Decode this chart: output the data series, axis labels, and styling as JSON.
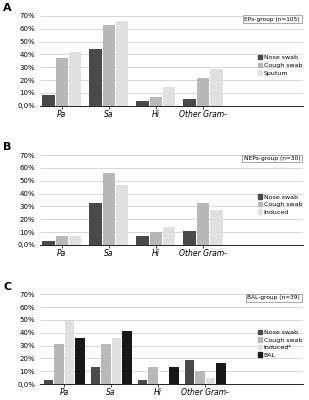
{
  "panels": [
    {
      "label": "A",
      "title": "EPs-group (n=105)",
      "legend_labels": [
        "Nose swab",
        "Cough swab",
        "Sputum"
      ],
      "categories": [
        "Pa",
        "Sa",
        "Hi",
        "Other Gram-"
      ],
      "values": [
        [
          8.0,
          37.0,
          42.0
        ],
        [
          44.0,
          63.0,
          66.0
        ],
        [
          4.0,
          7.0,
          15.0
        ],
        [
          5.0,
          22.0,
          29.0
        ]
      ],
      "n_bars": 3
    },
    {
      "label": "B",
      "title": "NEPs-group (n=30)",
      "legend_labels": [
        "Nose swab",
        "Cough swab",
        "Induced"
      ],
      "categories": [
        "Pa",
        "Sa",
        "Hi",
        "Other Gram-"
      ],
      "values": [
        [
          3.0,
          7.0,
          7.0
        ],
        [
          33.0,
          56.0,
          47.0
        ],
        [
          7.0,
          10.0,
          14.0
        ],
        [
          11.0,
          33.0,
          27.0
        ]
      ],
      "n_bars": 3
    },
    {
      "label": "C",
      "title": "BAL-group (n=39)",
      "legend_labels": [
        "Nose swab",
        "Cough swab",
        "Induced*",
        "BAL"
      ],
      "categories": [
        "Pa",
        "Sa",
        "Hi",
        "Other Gram-"
      ],
      "values": [
        [
          3.0,
          31.0,
          49.0,
          36.0
        ],
        [
          13.0,
          31.0,
          36.0,
          41.0
        ],
        [
          3.0,
          13.0,
          0.0,
          13.0
        ],
        [
          19.0,
          10.0,
          5.0,
          16.0
        ]
      ],
      "n_bars": 4
    }
  ],
  "bar_colors": [
    "#4a4a4a",
    "#b8b8b8",
    "#e0e0e0",
    "#181818"
  ],
  "ylim": [
    0,
    70
  ],
  "yticks": [
    0,
    10,
    20,
    30,
    40,
    50,
    60,
    70
  ],
  "ytick_labels": [
    "0,0%",
    "10%",
    "20%",
    "30%",
    "40%",
    "50%",
    "60%",
    "70%"
  ],
  "background_color": "#ffffff",
  "grid_color": "#c8c8c8"
}
